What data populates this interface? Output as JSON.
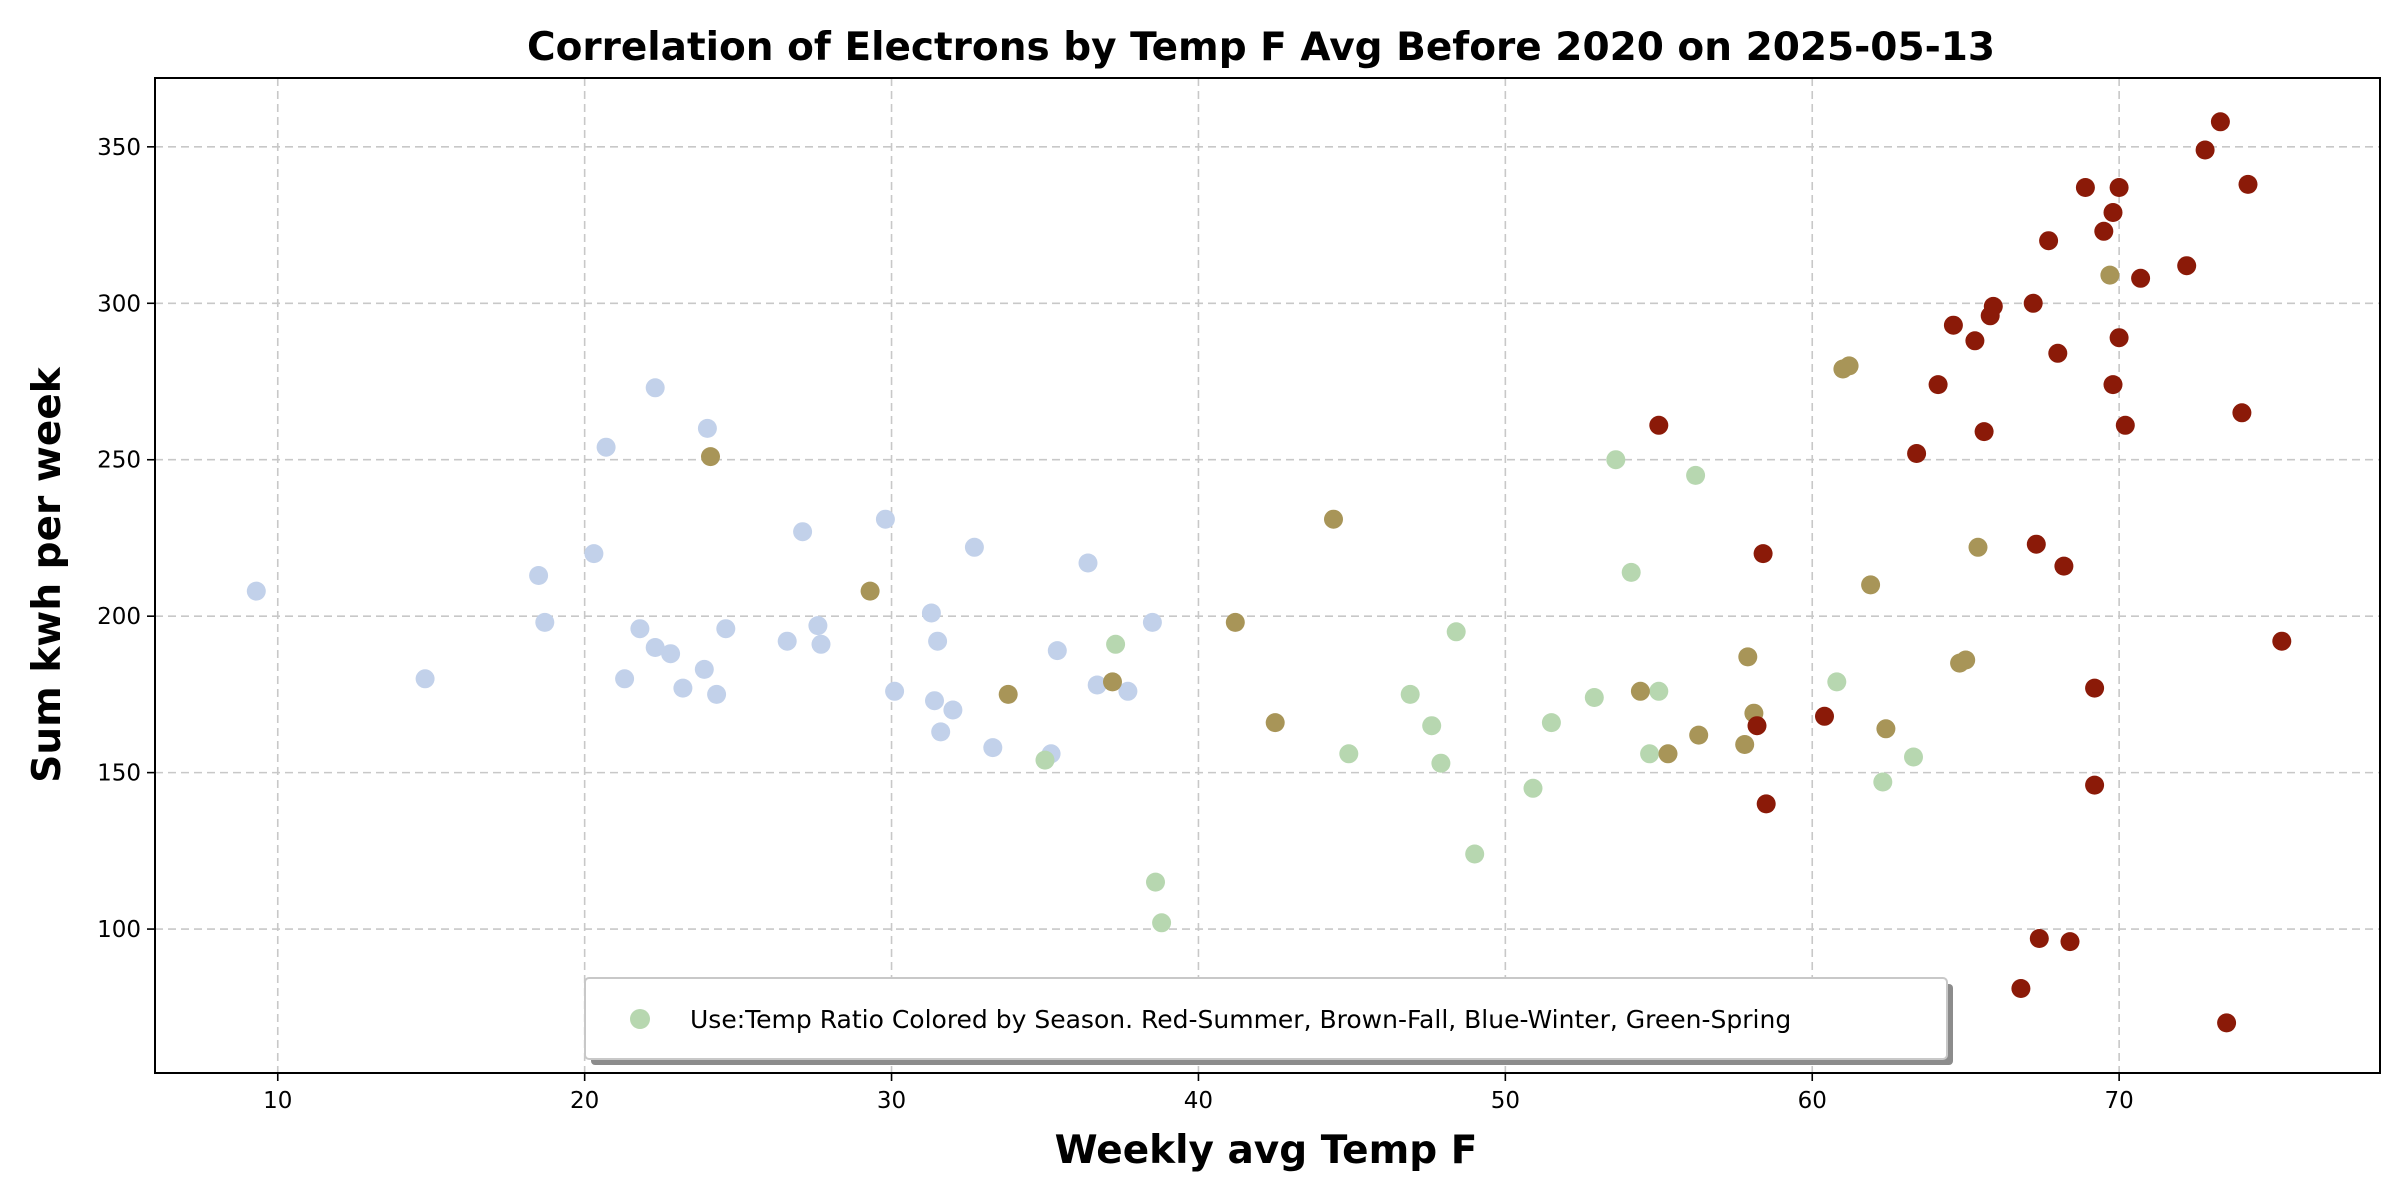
{
  "chart_data": {
    "type": "scatter",
    "title": "Correlation of Electrons by Temp F Avg Before 2020 on 2025-05-13",
    "xlabel": "Weekly avg Temp F",
    "ylabel": "Sum kwh per week",
    "xlim": [
      6,
      78.5
    ],
    "ylim": [
      54,
      372
    ],
    "x_ticks": [
      10,
      20,
      30,
      40,
      50,
      60,
      70
    ],
    "y_ticks": [
      100,
      150,
      200,
      250,
      300,
      350
    ],
    "grid": true,
    "legend": {
      "placement": "lower-center",
      "entries": [
        "Use:Temp Ratio Colored by Season. Red-Summer, Brown-Fall, Blue-Winter, Green-Spring"
      ],
      "marker_color": "#b7d7b0"
    },
    "colors": {
      "winter": "#c2d1ea",
      "spring": "#b7d7b0",
      "fall": "#a89558",
      "summer": "#8b1a08"
    },
    "series": [
      {
        "season": "winter",
        "x": [
          9.3,
          14.8,
          18.5,
          18.7,
          20.3,
          20.7,
          21.3,
          21.8,
          22.3,
          22.3,
          22.8,
          23.2,
          23.9,
          24.0,
          24.3,
          24.6,
          26.6,
          27.1,
          27.6,
          27.7,
          29.8,
          30.1,
          31.3,
          31.4,
          31.5,
          31.6,
          32.0,
          32.7,
          33.3,
          35.2,
          35.4,
          36.4,
          36.7,
          37.7,
          38.5
        ],
        "y": [
          208,
          180,
          213,
          198,
          220,
          254,
          180,
          196,
          190,
          273,
          188,
          177,
          183,
          260,
          175,
          196,
          192,
          227,
          197,
          191,
          231,
          176,
          201,
          173,
          192,
          163,
          170,
          222,
          158,
          156,
          189,
          217,
          178,
          176,
          198
        ]
      },
      {
        "season": "spring",
        "x": [
          35.0,
          37.3,
          38.6,
          38.8,
          44.9,
          46.9,
          47.6,
          47.9,
          48.4,
          49.0,
          50.9,
          51.5,
          52.9,
          53.6,
          54.1,
          54.7,
          55.0,
          56.2,
          60.8,
          62.3,
          63.3
        ],
        "y": [
          154,
          191,
          115,
          102,
          156,
          175,
          165,
          153,
          195,
          124,
          145,
          166,
          174,
          250,
          214,
          156,
          176,
          245,
          179,
          147,
          155
        ]
      },
      {
        "season": "fall",
        "x": [
          24.1,
          29.3,
          33.8,
          37.2,
          41.2,
          42.5,
          44.4,
          54.4,
          55.3,
          56.3,
          57.8,
          57.9,
          58.1,
          61.0,
          61.2,
          61.9,
          62.4,
          64.8,
          65.0,
          65.4,
          69.7
        ],
        "y": [
          251,
          208,
          175,
          179,
          198,
          166,
          231,
          176,
          156,
          162,
          159,
          187,
          169,
          279,
          280,
          210,
          164,
          185,
          186,
          222,
          309
        ]
      },
      {
        "season": "summer",
        "x": [
          55.0,
          58.2,
          58.4,
          58.5,
          60.4,
          63.4,
          64.1,
          64.6,
          65.3,
          65.6,
          65.8,
          65.9,
          66.8,
          67.2,
          67.3,
          67.4,
          67.7,
          68.0,
          68.2,
          68.4,
          68.9,
          69.2,
          69.2,
          69.5,
          69.8,
          69.8,
          70.0,
          70.0,
          70.2,
          70.7,
          72.2,
          72.8,
          73.3,
          73.5,
          74.0,
          74.2,
          75.3
        ],
        "y": [
          261,
          165,
          220,
          140,
          168,
          252,
          274,
          293,
          288,
          259,
          296,
          299,
          81,
          300,
          223,
          97,
          320,
          284,
          216,
          96,
          337,
          177,
          146,
          323,
          329,
          274,
          337,
          289,
          261,
          308,
          312,
          349,
          358,
          70,
          265,
          338,
          192
        ]
      }
    ]
  }
}
